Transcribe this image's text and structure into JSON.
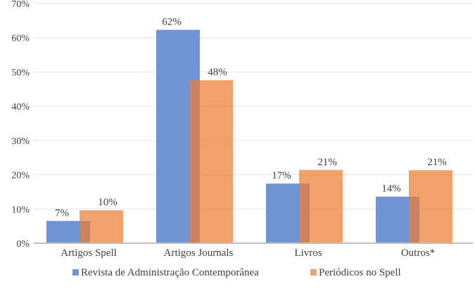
{
  "chart_data": {
    "type": "bar",
    "title": "",
    "xlabel": "",
    "ylabel": "",
    "ylim": [
      0,
      70
    ],
    "yticks": [
      "0%",
      "10%",
      "20%",
      "30%",
      "40%",
      "50%",
      "60%",
      "70%"
    ],
    "grid": true,
    "legend_position": "bottom",
    "categories": [
      "Artigos Spell",
      "Artigos Journals",
      "Livros",
      "Outros*"
    ],
    "series": [
      {
        "name": "Revista de Administração Contemporânea",
        "color": "#6f93d5",
        "values": [
          6.5,
          62.3,
          17.4,
          13.6
        ],
        "labels": [
          "7%",
          "62%",
          "17%",
          "14%"
        ]
      },
      {
        "name": "Periódicos no Spell",
        "color": "#ed7d31",
        "values": [
          9.6,
          47.6,
          21.4,
          21.3
        ],
        "labels": [
          "10%",
          "48%",
          "21%",
          "21%"
        ]
      }
    ]
  }
}
